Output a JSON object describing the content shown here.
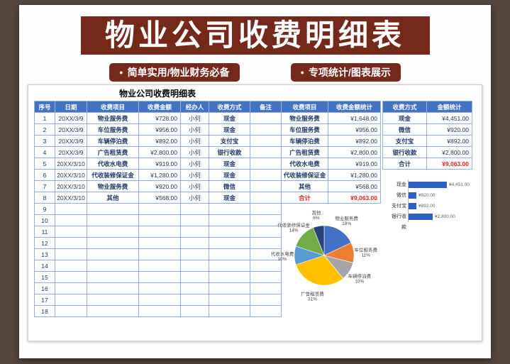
{
  "colors": {
    "background": "#57483f",
    "banner_red": "#74291b",
    "header_blue": "#4472c4",
    "grid_blue": "#95b3d7",
    "text_navy": "#1f3864",
    "total_red": "#e0231d",
    "bar_blue": "#2e5fc4"
  },
  "page": {
    "title": "物业公司收费明细表",
    "badges": [
      {
        "bullet": "●",
        "label": "简单实用/物业财务必备"
      },
      {
        "bullet": "●",
        "label": "专项统计/图表展示"
      }
    ]
  },
  "sheet": {
    "title": "物业公司收费明细表",
    "main_table": {
      "headers": [
        "序号",
        "日期",
        "收费项目",
        "收费金额",
        "经办人",
        "收费方式",
        "备注"
      ],
      "rows": [
        [
          "1",
          "20XX/3/9",
          "物业服务费",
          "¥728.00",
          "小何",
          "现金",
          ""
        ],
        [
          "2",
          "20XX/3/9",
          "车位服务费",
          "¥956.00",
          "小何",
          "现金",
          ""
        ],
        [
          "3",
          "20XX/3/9",
          "车辆停泊费",
          "¥892.00",
          "小何",
          "支付宝",
          ""
        ],
        [
          "4",
          "20XX/3/9",
          "广告租赁费",
          "¥2,800.00",
          "小何",
          "银行收款",
          ""
        ],
        [
          "5",
          "20XX/3/10",
          "代收水电费",
          "¥919.00",
          "小何",
          "现金",
          ""
        ],
        [
          "6",
          "20XX/3/10",
          "代收装修保证金",
          "¥1,280.00",
          "小何",
          "现金",
          ""
        ],
        [
          "7",
          "20XX/3/10",
          "物业服务费",
          "¥920.00",
          "小何",
          "微信",
          ""
        ],
        [
          "8",
          "20XX/3/10",
          "其他",
          "¥568.00",
          "小何",
          "现金",
          ""
        ],
        [
          "9",
          "",
          "",
          "",
          "",
          "",
          ""
        ],
        [
          "10",
          "",
          "",
          "",
          "",
          "",
          ""
        ],
        [
          "11",
          "",
          "",
          "",
          "",
          "",
          ""
        ],
        [
          "12",
          "",
          "",
          "",
          "",
          "",
          ""
        ],
        [
          "13",
          "",
          "",
          "",
          "",
          "",
          ""
        ],
        [
          "14",
          "",
          "",
          "",
          "",
          "",
          ""
        ],
        [
          "15",
          "",
          "",
          "",
          "",
          "",
          ""
        ],
        [
          "16",
          "",
          "",
          "",
          "",
          "",
          ""
        ],
        [
          "17",
          "",
          "",
          "",
          "",
          "",
          ""
        ],
        [
          "18",
          "",
          "",
          "",
          "",
          "",
          ""
        ]
      ]
    },
    "item_summary": {
      "headers": [
        "收费项目",
        "收费金额统计"
      ],
      "rows": [
        [
          "物业服务费",
          "¥1,648.00"
        ],
        [
          "车位服务费",
          "¥956.00"
        ],
        [
          "车辆停泊费",
          "¥892.00"
        ],
        [
          "广告租赁费",
          "¥2,800.00"
        ],
        [
          "代收水电费",
          "¥919.00"
        ],
        [
          "代收装修保证金",
          "¥1,280.00"
        ],
        [
          "其他",
          "¥568.00"
        ]
      ],
      "total": [
        "合计",
        "¥9,063.00"
      ]
    },
    "method_summary": {
      "headers": [
        "收费方式",
        "金额统计"
      ],
      "rows": [
        [
          "现金",
          "¥4,451.00"
        ],
        [
          "微信",
          "¥920.00"
        ],
        [
          "支付宝",
          "¥892.00"
        ],
        [
          "银行收款",
          "¥2,800.00"
        ]
      ],
      "total": [
        "合计",
        "¥9,063.00"
      ]
    }
  },
  "chart_data": [
    {
      "type": "bar",
      "orientation": "horizontal",
      "title": "",
      "categories": [
        "现金",
        "微信",
        "支付宝",
        "银行收款"
      ],
      "values": [
        4451,
        920,
        892,
        2800
      ],
      "value_labels": [
        "¥4,451.00",
        "¥920.00",
        "¥892.00",
        "¥2,800.00"
      ],
      "xlim": [
        0,
        4451
      ],
      "bar_color": "#2e5fc4"
    },
    {
      "type": "pie",
      "title": "",
      "categories": [
        "物业服务费",
        "车位服务费",
        "车辆停泊费",
        "广告租赁费",
        "代收水电费",
        "代收装修保证金",
        "其他"
      ],
      "values": [
        1648,
        956,
        892,
        2800,
        919,
        1280,
        568
      ],
      "percents": [
        18,
        11,
        10,
        31,
        10,
        14,
        6
      ],
      "percent_labels": [
        "18%",
        "11%",
        "10%",
        "31%",
        "10%",
        "14%",
        "6%"
      ],
      "colors": [
        "#4472c4",
        "#ed7d31",
        "#a5a5a5",
        "#ffc000",
        "#5b9bd5",
        "#70ad47",
        "#264478"
      ]
    }
  ]
}
